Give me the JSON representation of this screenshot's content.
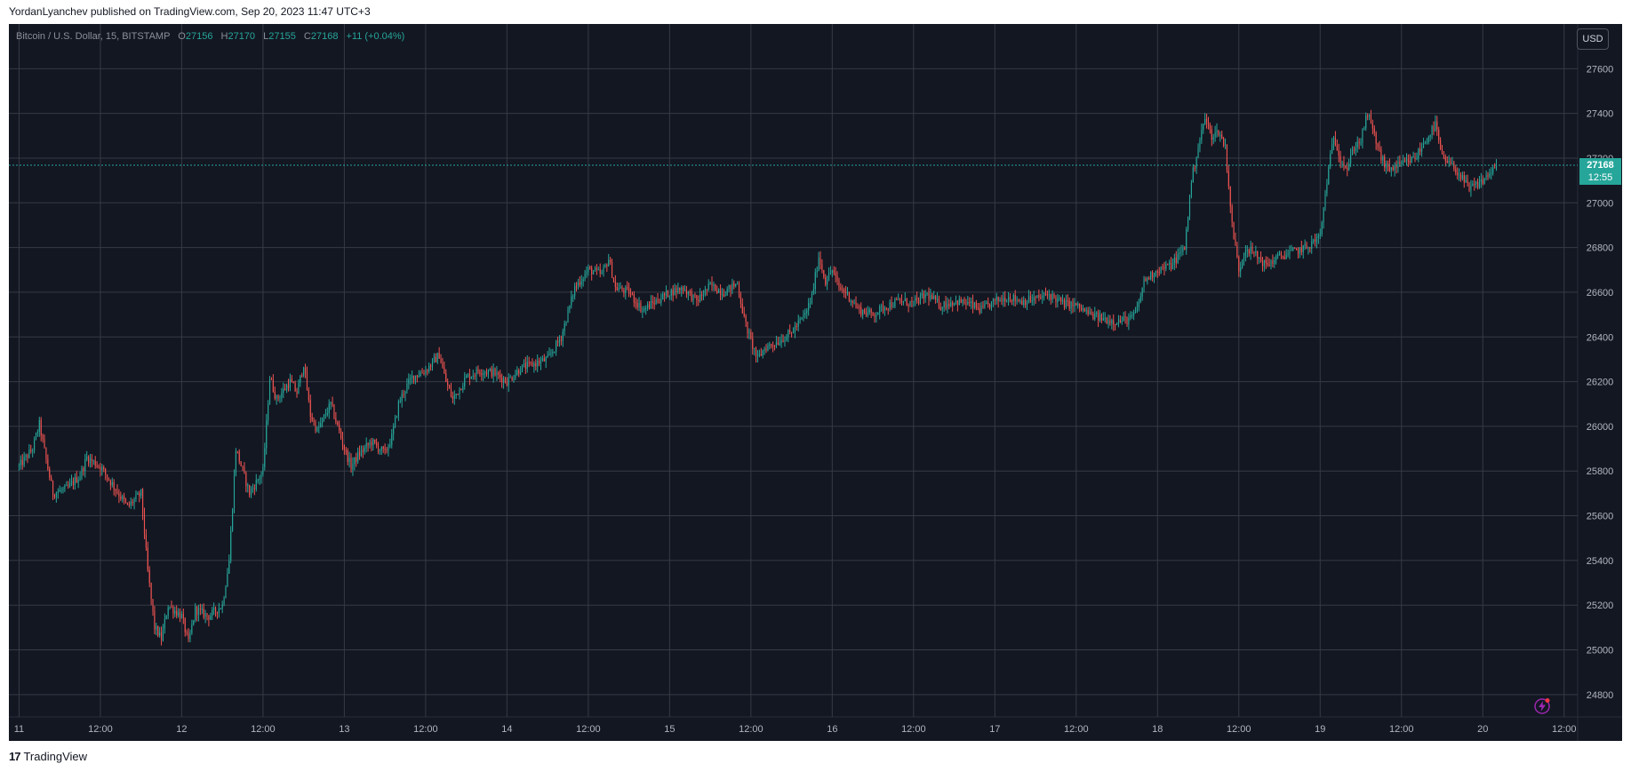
{
  "publisher_line": "YordanLyanchev published on TradingView.com, Sep 20, 2023 11:47 UTC+3",
  "legend": {
    "symbol": "Bitcoin / U.S. Dollar, 15, BITSTAMP",
    "o_label": "O",
    "o_value": "27156",
    "h_label": "H",
    "h_value": "27170",
    "l_label": "L",
    "l_value": "27155",
    "c_label": "C",
    "c_value": "27168",
    "change": "+11 (+0.04%)"
  },
  "currency_button": "USD",
  "last_price": {
    "price": "27168",
    "countdown": "12:55"
  },
  "footer": {
    "logo_mark": "17",
    "brand": "TradingView"
  },
  "colors": {
    "background": "#131722",
    "grid": "#363a45",
    "up": "#26a69a",
    "down": "#ef5350",
    "text": "#b2b5be",
    "accent_flash": "#9c27b0"
  },
  "icons": [
    "flash-icon"
  ],
  "chart_data": {
    "type": "candlestick",
    "interval": "15",
    "exchange": "BITSTAMP",
    "pair": "BTC/USD",
    "ylim": [
      24700,
      27800
    ],
    "y_ticks": [
      24800,
      25000,
      25200,
      25400,
      25600,
      25800,
      26000,
      26200,
      26400,
      26600,
      26800,
      27000,
      27200,
      27400,
      27600
    ],
    "x_tick_labels": [
      "11",
      "12:00",
      "12",
      "12:00",
      "13",
      "12:00",
      "14",
      "12:00",
      "15",
      "12:00",
      "16",
      "12:00",
      "17",
      "12:00",
      "18",
      "12:00",
      "19",
      "12:00",
      "20",
      "12:00"
    ],
    "x_range_hours": [
      0,
      228
    ],
    "x_tick_hours": [
      0,
      12,
      24,
      36,
      48,
      60,
      72,
      84,
      96,
      108,
      120,
      132,
      144,
      156,
      168,
      180,
      192,
      204,
      216,
      228
    ],
    "last_close": 27168,
    "path": [
      [
        0,
        25820
      ],
      [
        2,
        25900
      ],
      [
        3,
        26010
      ],
      [
        4,
        25850
      ],
      [
        5,
        25700
      ],
      [
        7,
        25720
      ],
      [
        9,
        25780
      ],
      [
        10,
        25860
      ],
      [
        12,
        25820
      ],
      [
        14,
        25730
      ],
      [
        16,
        25640
      ],
      [
        18,
        25700
      ],
      [
        19,
        25350
      ],
      [
        20,
        25100
      ],
      [
        21,
        25050
      ],
      [
        22,
        25200
      ],
      [
        24,
        25150
      ],
      [
        25,
        25030
      ],
      [
        26,
        25180
      ],
      [
        28,
        25150
      ],
      [
        30,
        25200
      ],
      [
        31,
        25400
      ],
      [
        32,
        25900
      ],
      [
        34,
        25700
      ],
      [
        36,
        25800
      ],
      [
        37,
        26220
      ],
      [
        38,
        26120
      ],
      [
        40,
        26200
      ],
      [
        41,
        26150
      ],
      [
        42,
        26280
      ],
      [
        43,
        26050
      ],
      [
        44,
        25980
      ],
      [
        46,
        26100
      ],
      [
        47,
        26000
      ],
      [
        48,
        25900
      ],
      [
        49,
        25820
      ],
      [
        50,
        25870
      ],
      [
        52,
        25930
      ],
      [
        54,
        25880
      ],
      [
        55,
        25950
      ],
      [
        56,
        26100
      ],
      [
        57,
        26170
      ],
      [
        58,
        26220
      ],
      [
        60,
        26250
      ],
      [
        62,
        26320
      ],
      [
        63,
        26200
      ],
      [
        64,
        26120
      ],
      [
        66,
        26220
      ],
      [
        68,
        26250
      ],
      [
        70,
        26240
      ],
      [
        72,
        26200
      ],
      [
        74,
        26260
      ],
      [
        76,
        26280
      ],
      [
        78,
        26300
      ],
      [
        80,
        26400
      ],
      [
        82,
        26620
      ],
      [
        84,
        26700
      ],
      [
        86,
        26680
      ],
      [
        87,
        26750
      ],
      [
        88,
        26620
      ],
      [
        90,
        26600
      ],
      [
        92,
        26520
      ],
      [
        94,
        26560
      ],
      [
        96,
        26600
      ],
      [
        98,
        26620
      ],
      [
        100,
        26560
      ],
      [
        102,
        26630
      ],
      [
        104,
        26600
      ],
      [
        106,
        26640
      ],
      [
        107,
        26480
      ],
      [
        108,
        26380
      ],
      [
        109,
        26300
      ],
      [
        110,
        26350
      ],
      [
        112,
        26380
      ],
      [
        114,
        26420
      ],
      [
        116,
        26500
      ],
      [
        117,
        26580
      ],
      [
        118,
        26760
      ],
      [
        119,
        26650
      ],
      [
        120,
        26700
      ],
      [
        121,
        26620
      ],
      [
        122,
        26600
      ],
      [
        124,
        26520
      ],
      [
        126,
        26500
      ],
      [
        128,
        26540
      ],
      [
        130,
        26560
      ],
      [
        132,
        26550
      ],
      [
        134,
        26590
      ],
      [
        136,
        26540
      ],
      [
        138,
        26560
      ],
      [
        140,
        26550
      ],
      [
        142,
        26520
      ],
      [
        144,
        26560
      ],
      [
        146,
        26580
      ],
      [
        148,
        26560
      ],
      [
        150,
        26570
      ],
      [
        152,
        26590
      ],
      [
        154,
        26550
      ],
      [
        156,
        26540
      ],
      [
        158,
        26500
      ],
      [
        160,
        26480
      ],
      [
        162,
        26470
      ],
      [
        164,
        26480
      ],
      [
        165,
        26520
      ],
      [
        166,
        26650
      ],
      [
        168,
        26700
      ],
      [
        170,
        26720
      ],
      [
        172,
        26800
      ],
      [
        173,
        27100
      ],
      [
        174,
        27250
      ],
      [
        175,
        27380
      ],
      [
        176,
        27300
      ],
      [
        177,
        27320
      ],
      [
        178,
        27250
      ],
      [
        179,
        26900
      ],
      [
        180,
        26700
      ],
      [
        181,
        26800
      ],
      [
        182,
        26780
      ],
      [
        184,
        26720
      ],
      [
        186,
        26760
      ],
      [
        188,
        26780
      ],
      [
        190,
        26800
      ],
      [
        192,
        26850
      ],
      [
        193,
        27100
      ],
      [
        194,
        27300
      ],
      [
        195,
        27200
      ],
      [
        196,
        27150
      ],
      [
        197,
        27250
      ],
      [
        198,
        27280
      ],
      [
        199,
        27400
      ],
      [
        200,
        27300
      ],
      [
        201,
        27200
      ],
      [
        202,
        27150
      ],
      [
        204,
        27170
      ],
      [
        206,
        27200
      ],
      [
        207,
        27250
      ],
      [
        208,
        27300
      ],
      [
        209,
        27350
      ],
      [
        210,
        27200
      ],
      [
        212,
        27150
      ],
      [
        214,
        27060
      ],
      [
        216,
        27100
      ],
      [
        218,
        27168
      ]
    ]
  }
}
